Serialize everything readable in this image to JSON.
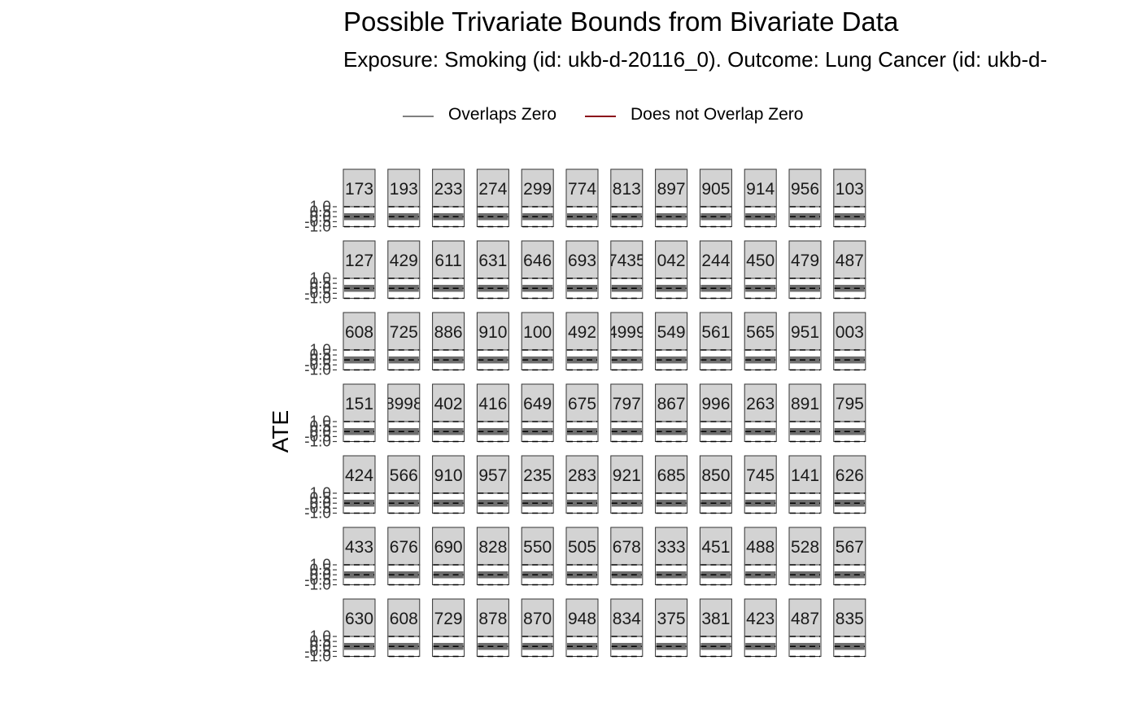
{
  "chart_data": {
    "type": "faceted-range",
    "title": "Possible Trivariate Bounds from Bivariate Data",
    "subtitle": "Exposure: Smoking (id: ukb-d-20116_0). Outcome: Lung Cancer (id: ukb-d-",
    "ylabel": "ATE",
    "xlabel": "",
    "ylim": [
      -1.0,
      1.0
    ],
    "y_ticks": [
      "1.0",
      "0.5",
      "0.0",
      "-0.5",
      "-1.0"
    ],
    "reference_lines": [
      1.0,
      0.0,
      -1.0
    ],
    "legend": {
      "position": "top",
      "items": [
        {
          "label": "Overlaps Zero",
          "color": "#7f7f7f"
        },
        {
          "label": "Does not Overlap Zero",
          "color": "#8b0a1a"
        }
      ]
    },
    "panel_layout": {
      "rows": 7,
      "cols": 12
    },
    "panels": [
      "173",
      "193",
      "233",
      "274",
      "299",
      "774",
      "813",
      "897",
      "905",
      "914",
      "956",
      "103",
      "127",
      "429",
      "611",
      "631",
      "646",
      "693",
      "7435",
      "042",
      "244",
      "450",
      "479",
      "487",
      "608",
      "725",
      "886",
      "910",
      "100",
      "492",
      "4999",
      "549",
      "561",
      "565",
      "951",
      "003",
      "151",
      "8998",
      "402",
      "416",
      "649",
      "675",
      "797",
      "867",
      "996",
      "263",
      "891",
      "795",
      "424",
      "566",
      "910",
      "957",
      "235",
      "283",
      "921",
      "685",
      "850",
      "745",
      "141",
      "626",
      "433",
      "676",
      "690",
      "828",
      "550",
      "505",
      "678",
      "333",
      "451",
      "488",
      "528",
      "567",
      "630",
      "608",
      "729",
      "878",
      "870",
      "948",
      "834",
      "375",
      "381",
      "423",
      "487",
      "835"
    ],
    "bounds": {
      "lower": -0.35,
      "upper": 0.35,
      "overlaps_zero": true
    }
  }
}
